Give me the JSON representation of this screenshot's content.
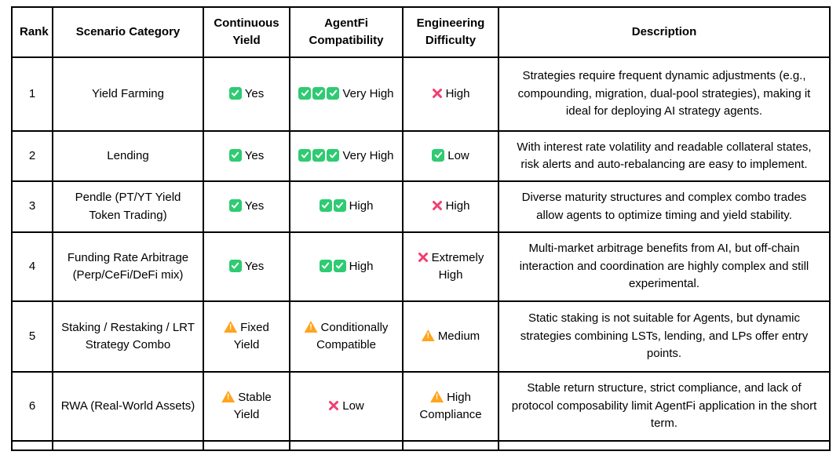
{
  "colors": {
    "check_green": "#2FCB72",
    "cross_pink": "#F23E6D",
    "warning_orange": "#FFA41C",
    "border": "#000000",
    "background": "#FFFFFF"
  },
  "icons": {
    "check": "check-icon",
    "cross": "cross-icon",
    "warning": "warning-icon"
  },
  "table": {
    "columns": [
      "Rank",
      "Scenario Category",
      "Continuous Yield",
      "AgentFi Compatibility",
      "Engineering Difficulty",
      "Description"
    ],
    "rows": [
      {
        "rank": "1",
        "category": "Yield Farming",
        "continuous_yield": {
          "icon": "check",
          "count": 1,
          "label": "Yes"
        },
        "agentfi_compatibility": {
          "icon": "check",
          "count": 3,
          "label": "Very High"
        },
        "engineering_difficulty": {
          "icon": "cross",
          "count": 1,
          "label": "High"
        },
        "description": "Strategies require frequent dynamic adjustments (e.g., compounding, migration, dual-pool strategies), making it ideal for deploying AI strategy agents."
      },
      {
        "rank": "2",
        "category": "Lending",
        "continuous_yield": {
          "icon": "check",
          "count": 1,
          "label": "Yes"
        },
        "agentfi_compatibility": {
          "icon": "check",
          "count": 3,
          "label": "Very High"
        },
        "engineering_difficulty": {
          "icon": "check",
          "count": 1,
          "label": "Low"
        },
        "description": "With interest rate volatility and readable collateral states, risk alerts and auto-rebalancing are easy to implement."
      },
      {
        "rank": "3",
        "category": "Pendle (PT/YT Yield Token Trading)",
        "continuous_yield": {
          "icon": "check",
          "count": 1,
          "label": "Yes"
        },
        "agentfi_compatibility": {
          "icon": "check",
          "count": 2,
          "label": "High"
        },
        "engineering_difficulty": {
          "icon": "cross",
          "count": 1,
          "label": "High"
        },
        "description": "Diverse maturity structures and complex combo trades allow agents to optimize timing and yield stability."
      },
      {
        "rank": "4",
        "category": "Funding Rate Arbitrage (Perp/CeFi/DeFi mix)",
        "continuous_yield": {
          "icon": "check",
          "count": 1,
          "label": "Yes"
        },
        "agentfi_compatibility": {
          "icon": "check",
          "count": 2,
          "label": "High"
        },
        "engineering_difficulty": {
          "icon": "cross",
          "count": 1,
          "label": "Extremely High"
        },
        "description": "Multi-market arbitrage benefits from AI, but off-chain interaction and coordination are highly complex and still experimental."
      },
      {
        "rank": "5",
        "category": "Staking / Restaking / LRT Strategy Combo",
        "continuous_yield": {
          "icon": "warning",
          "count": 1,
          "label": "Fixed Yield"
        },
        "agentfi_compatibility": {
          "icon": "warning",
          "count": 1,
          "label": "Conditionally Compatible"
        },
        "engineering_difficulty": {
          "icon": "warning",
          "count": 1,
          "label": "Medium"
        },
        "description": "Static staking is not suitable for Agents, but dynamic strategies combining LSTs, lending, and LPs offer entry points."
      },
      {
        "rank": "6",
        "category": "RWA (Real-World Assets)",
        "continuous_yield": {
          "icon": "warning",
          "count": 1,
          "label": "Stable Yield"
        },
        "agentfi_compatibility": {
          "icon": "cross",
          "count": 1,
          "label": "Low"
        },
        "engineering_difficulty": {
          "icon": "warning",
          "count": 1,
          "label": "High Compliance"
        },
        "description": "Stable return structure, strict compliance, and lack of protocol composability limit AgentFi application in the short term."
      }
    ]
  }
}
